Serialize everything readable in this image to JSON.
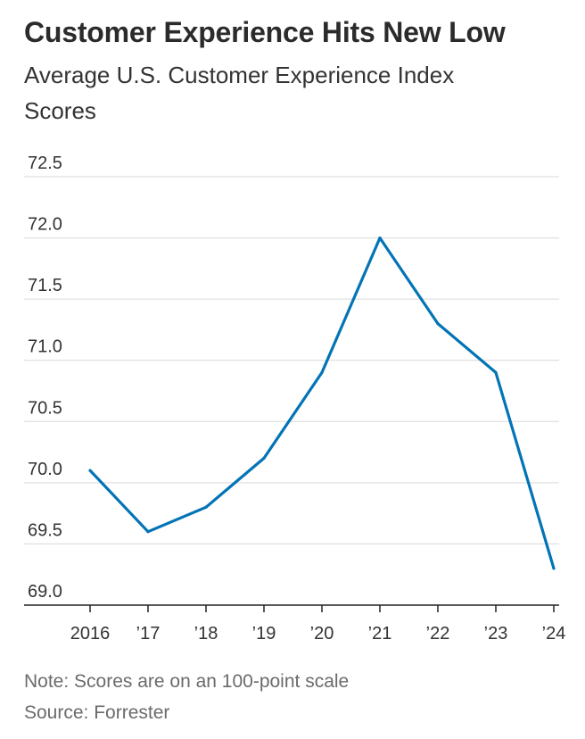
{
  "chart_data": {
    "type": "line",
    "title": "Customer Experience Hits New Low",
    "subtitle": "Average U.S. Customer Experience Index Scores",
    "xlabel": "",
    "ylabel": "",
    "categories": [
      "2016",
      "’17",
      "’18",
      "’19",
      "’20",
      "’21",
      "’22",
      "’23",
      "’24"
    ],
    "series": [
      {
        "name": "Average U.S. Customer Experience Index Score",
        "values": [
          70.1,
          69.6,
          69.8,
          70.2,
          70.9,
          72.0,
          71.3,
          70.9,
          69.3
        ]
      }
    ],
    "ylim": [
      69.0,
      72.5
    ],
    "yticks": [
      "72.5",
      "72.0",
      "71.5",
      "71.0",
      "70.5",
      "70.0",
      "69.5",
      "69.0"
    ],
    "grid": true,
    "line_color": "#0274b6",
    "grid_color": "#d9d9d9",
    "axis_color": "#222222"
  },
  "footer": {
    "note": "Note: Scores are on an 100-point scale",
    "source": "Source: Forrester"
  }
}
